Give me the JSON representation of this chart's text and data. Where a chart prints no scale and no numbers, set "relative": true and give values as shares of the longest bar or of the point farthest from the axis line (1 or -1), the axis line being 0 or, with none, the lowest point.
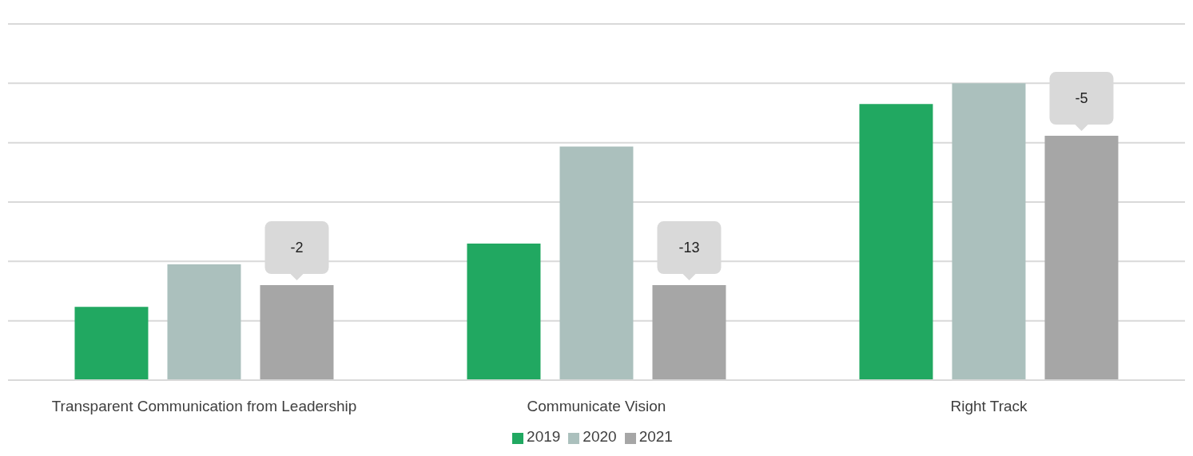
{
  "chart_data": {
    "type": "bar",
    "relative": true,
    "categories": [
      "Transparent Communication from Leadership",
      "Communicate Vision",
      "Right Track"
    ],
    "series": [
      {
        "name": "2019",
        "color": "#21a861",
        "values": [
          0.247,
          0.46,
          0.93
        ]
      },
      {
        "name": "2020",
        "color": "#abc0bd",
        "values": [
          0.39,
          0.787,
          1
        ]
      },
      {
        "name": "2021",
        "color": "#a6a6a6",
        "values": [
          0.32,
          0.32,
          0.823
        ]
      }
    ],
    "annotations": [
      "-2",
      "-13",
      "-5"
    ],
    "grid": "y",
    "legend": "bottom"
  }
}
